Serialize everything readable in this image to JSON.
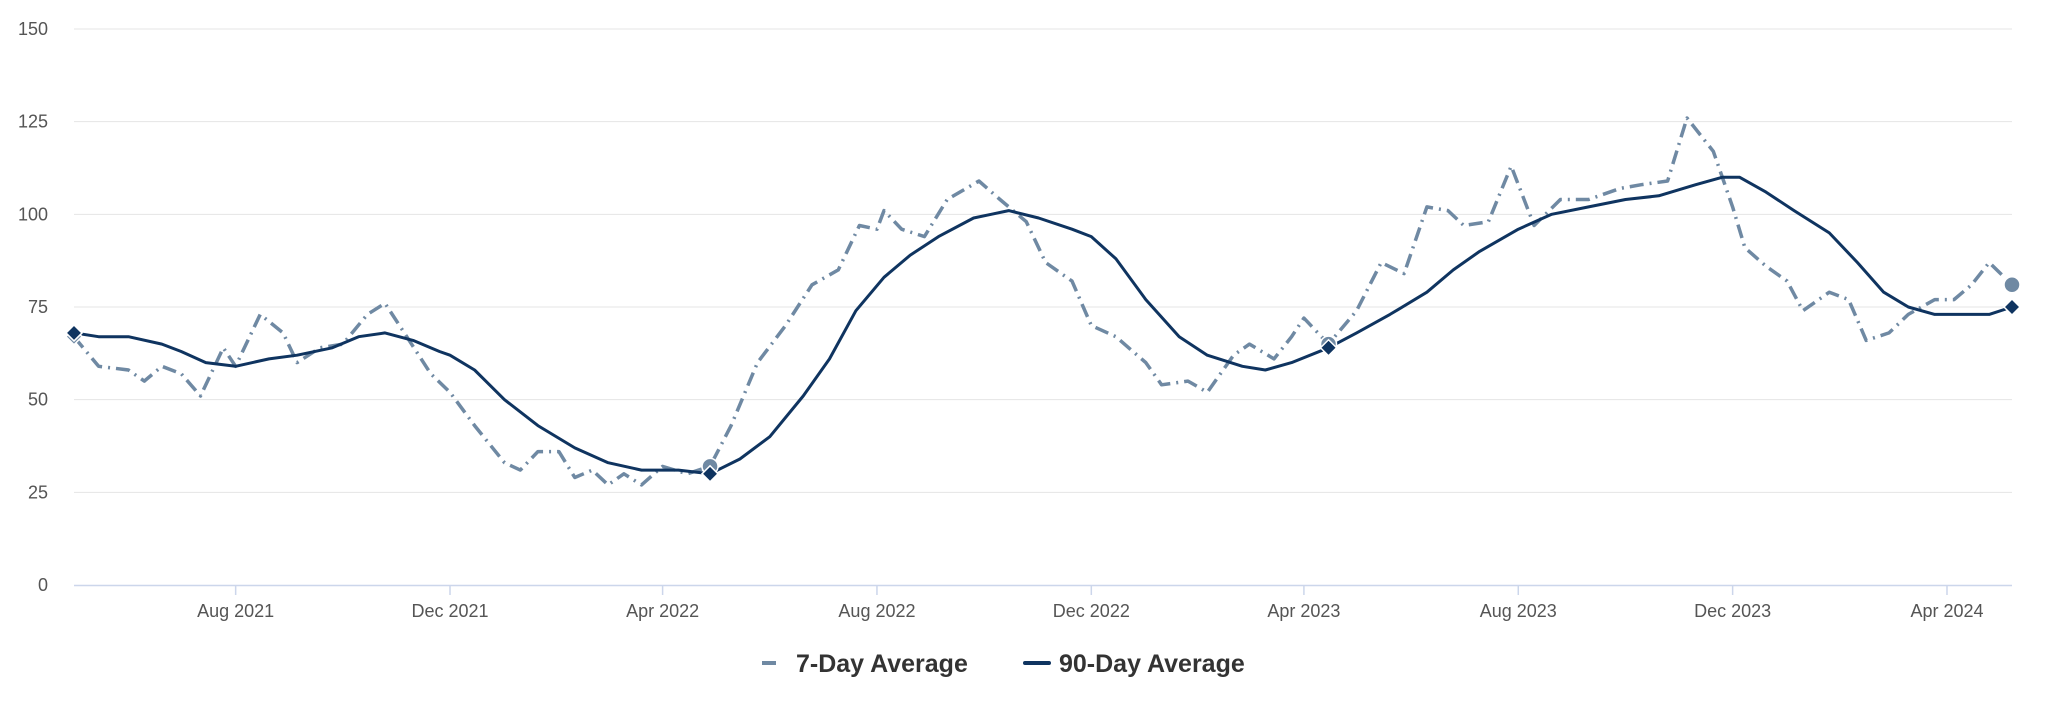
{
  "chart_data": {
    "type": "line",
    "title": "",
    "xlabel": "",
    "ylabel": "",
    "ylim": [
      0,
      150
    ],
    "y_ticks": [
      0,
      25,
      50,
      75,
      100,
      125,
      150
    ],
    "x_range": [
      "2021-05-01",
      "2024-05-08"
    ],
    "x_ticks": [
      {
        "date": "2021-08-01",
        "label": "Aug 2021"
      },
      {
        "date": "2021-12-01",
        "label": "Dec 2021"
      },
      {
        "date": "2022-04-01",
        "label": "Apr 2022"
      },
      {
        "date": "2022-08-01",
        "label": "Aug 2022"
      },
      {
        "date": "2022-12-01",
        "label": "Dec 2022"
      },
      {
        "date": "2023-04-01",
        "label": "Apr 2023"
      },
      {
        "date": "2023-08-01",
        "label": "Aug 2023"
      },
      {
        "date": "2023-12-01",
        "label": "Dec 2023"
      },
      {
        "date": "2024-04-01",
        "label": "Apr 2024"
      }
    ],
    "grid": "horizontal",
    "legend_placement": "bottom-center",
    "series": [
      {
        "name": "7-Day Average",
        "style": "dashed",
        "color": "#6f89a3",
        "points": [
          [
            "2021-05-01",
            67
          ],
          [
            "2021-05-15",
            59
          ],
          [
            "2021-06-01",
            58
          ],
          [
            "2021-06-10",
            55
          ],
          [
            "2021-06-20",
            59
          ],
          [
            "2021-07-01",
            57
          ],
          [
            "2021-07-12",
            51
          ],
          [
            "2021-07-25",
            64
          ],
          [
            "2021-08-01",
            59
          ],
          [
            "2021-08-15",
            73
          ],
          [
            "2021-08-28",
            68
          ],
          [
            "2021-09-05",
            60
          ],
          [
            "2021-09-18",
            64
          ],
          [
            "2021-10-01",
            65
          ],
          [
            "2021-10-15",
            73
          ],
          [
            "2021-10-25",
            76
          ],
          [
            "2021-11-05",
            68
          ],
          [
            "2021-11-20",
            57
          ],
          [
            "2021-12-01",
            52
          ],
          [
            "2021-12-15",
            43
          ],
          [
            "2022-01-01",
            33
          ],
          [
            "2022-01-10",
            31
          ],
          [
            "2022-01-20",
            36
          ],
          [
            "2022-02-01",
            36
          ],
          [
            "2022-02-10",
            29
          ],
          [
            "2022-02-20",
            31
          ],
          [
            "2022-03-01",
            27
          ],
          [
            "2022-03-10",
            30
          ],
          [
            "2022-03-20",
            27
          ],
          [
            "2022-04-01",
            32
          ],
          [
            "2022-04-15",
            30
          ],
          [
            "2022-04-28",
            32
          ],
          [
            "2022-05-10",
            43
          ],
          [
            "2022-05-25",
            60
          ],
          [
            "2022-06-10",
            70
          ],
          [
            "2022-06-25",
            81
          ],
          [
            "2022-07-10",
            85
          ],
          [
            "2022-07-22",
            97
          ],
          [
            "2022-08-01",
            96
          ],
          [
            "2022-08-05",
            101
          ],
          [
            "2022-08-15",
            96
          ],
          [
            "2022-08-28",
            94
          ],
          [
            "2022-09-10",
            104
          ],
          [
            "2022-09-28",
            109
          ],
          [
            "2022-10-10",
            104
          ],
          [
            "2022-10-25",
            98
          ],
          [
            "2022-11-05",
            87
          ],
          [
            "2022-11-20",
            82
          ],
          [
            "2022-12-01",
            70
          ],
          [
            "2022-12-15",
            67
          ],
          [
            "2023-01-01",
            60
          ],
          [
            "2023-01-10",
            54
          ],
          [
            "2023-01-25",
            55
          ],
          [
            "2023-02-05",
            52
          ],
          [
            "2023-02-20",
            62
          ],
          [
            "2023-03-01",
            65
          ],
          [
            "2023-03-15",
            61
          ],
          [
            "2023-03-25",
            67
          ],
          [
            "2023-04-01",
            72
          ],
          [
            "2023-04-15",
            65
          ],
          [
            "2023-05-01",
            74
          ],
          [
            "2023-05-15",
            87
          ],
          [
            "2023-05-28",
            84
          ],
          [
            "2023-06-10",
            102
          ],
          [
            "2023-06-22",
            101
          ],
          [
            "2023-07-01",
            97
          ],
          [
            "2023-07-15",
            98
          ],
          [
            "2023-07-28",
            113
          ],
          [
            "2023-08-10",
            97
          ],
          [
            "2023-08-25",
            104
          ],
          [
            "2023-09-10",
            104
          ],
          [
            "2023-09-28",
            107
          ],
          [
            "2023-10-10",
            108
          ],
          [
            "2023-10-25",
            109
          ],
          [
            "2023-11-05",
            126
          ],
          [
            "2023-11-20",
            117
          ],
          [
            "2023-12-01",
            102
          ],
          [
            "2023-12-08",
            91
          ],
          [
            "2023-12-20",
            86
          ],
          [
            "2024-01-01",
            82
          ],
          [
            "2024-01-10",
            74
          ],
          [
            "2024-01-25",
            79
          ],
          [
            "2024-02-05",
            77
          ],
          [
            "2024-02-15",
            66
          ],
          [
            "2024-02-28",
            68
          ],
          [
            "2024-03-10",
            73
          ],
          [
            "2024-03-25",
            77
          ],
          [
            "2024-04-05",
            77
          ],
          [
            "2024-04-15",
            81
          ],
          [
            "2024-04-25",
            87
          ],
          [
            "2024-05-08",
            81
          ]
        ],
        "markers": [
          {
            "date": "2021-05-01",
            "value": 67,
            "shape": "diamond"
          },
          {
            "date": "2022-04-28",
            "value": 32,
            "shape": "circle"
          },
          {
            "date": "2023-04-15",
            "value": 65,
            "shape": "circle"
          },
          {
            "date": "2024-05-08",
            "value": 81,
            "shape": "circle"
          }
        ]
      },
      {
        "name": "90-Day Average",
        "style": "solid",
        "color": "#0f3460",
        "points": [
          [
            "2021-05-01",
            68
          ],
          [
            "2021-05-15",
            67
          ],
          [
            "2021-06-01",
            67
          ],
          [
            "2021-06-20",
            65
          ],
          [
            "2021-07-01",
            63
          ],
          [
            "2021-07-15",
            60
          ],
          [
            "2021-08-01",
            59
          ],
          [
            "2021-08-20",
            61
          ],
          [
            "2021-09-05",
            62
          ],
          [
            "2021-09-25",
            64
          ],
          [
            "2021-10-10",
            67
          ],
          [
            "2021-10-25",
            68
          ],
          [
            "2021-11-10",
            66
          ],
          [
            "2021-11-25",
            63
          ],
          [
            "2021-12-01",
            62
          ],
          [
            "2021-12-15",
            58
          ],
          [
            "2022-01-01",
            50
          ],
          [
            "2022-01-20",
            43
          ],
          [
            "2022-02-10",
            37
          ],
          [
            "2022-03-01",
            33
          ],
          [
            "2022-03-20",
            31
          ],
          [
            "2022-04-10",
            31
          ],
          [
            "2022-04-28",
            30
          ],
          [
            "2022-05-15",
            34
          ],
          [
            "2022-06-01",
            40
          ],
          [
            "2022-06-20",
            51
          ],
          [
            "2022-07-05",
            61
          ],
          [
            "2022-07-20",
            74
          ],
          [
            "2022-08-05",
            83
          ],
          [
            "2022-08-20",
            89
          ],
          [
            "2022-09-05",
            94
          ],
          [
            "2022-09-25",
            99
          ],
          [
            "2022-10-05",
            100
          ],
          [
            "2022-10-15",
            101
          ],
          [
            "2022-11-01",
            99
          ],
          [
            "2022-11-20",
            96
          ],
          [
            "2022-12-01",
            94
          ],
          [
            "2022-12-15",
            88
          ],
          [
            "2023-01-01",
            77
          ],
          [
            "2023-01-20",
            67
          ],
          [
            "2023-02-05",
            62
          ],
          [
            "2023-02-25",
            59
          ],
          [
            "2023-03-10",
            58
          ],
          [
            "2023-03-25",
            60
          ],
          [
            "2023-04-15",
            64
          ],
          [
            "2023-05-01",
            68
          ],
          [
            "2023-05-20",
            73
          ],
          [
            "2023-06-10",
            79
          ],
          [
            "2023-06-25",
            85
          ],
          [
            "2023-07-10",
            90
          ],
          [
            "2023-08-01",
            96
          ],
          [
            "2023-08-20",
            100
          ],
          [
            "2023-09-10",
            102
          ],
          [
            "2023-10-01",
            104
          ],
          [
            "2023-10-20",
            105
          ],
          [
            "2023-11-10",
            108
          ],
          [
            "2023-11-25",
            110
          ],
          [
            "2023-12-05",
            110
          ],
          [
            "2023-12-20",
            106
          ],
          [
            "2024-01-05",
            101
          ],
          [
            "2024-01-25",
            95
          ],
          [
            "2024-02-10",
            87
          ],
          [
            "2024-02-25",
            79
          ],
          [
            "2024-03-10",
            75
          ],
          [
            "2024-03-25",
            73
          ],
          [
            "2024-04-10",
            73
          ],
          [
            "2024-04-25",
            73
          ],
          [
            "2024-05-08",
            75
          ]
        ],
        "markers": [
          {
            "date": "2021-05-01",
            "value": 68,
            "shape": "diamond"
          },
          {
            "date": "2022-04-28",
            "value": 30,
            "shape": "diamond"
          },
          {
            "date": "2023-04-15",
            "value": 64,
            "shape": "diamond"
          },
          {
            "date": "2024-05-08",
            "value": 75,
            "shape": "diamond"
          }
        ]
      }
    ]
  },
  "colors": {
    "grid": "#e4e4e4",
    "axis": "#ccd6eb",
    "tick_text": "#555555",
    "legend_text": "#333333"
  }
}
